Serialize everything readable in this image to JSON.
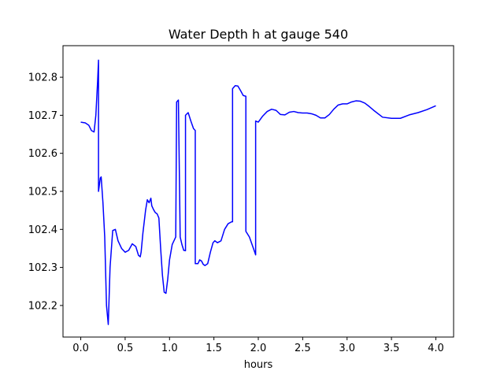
{
  "chart_data": {
    "type": "line",
    "title": "Water Depth h at gauge 540",
    "xlabel": "hours",
    "ylabel": "",
    "xlim": [
      -0.2,
      4.2
    ],
    "ylim": [
      102.117,
      102.883
    ],
    "xticks": [
      0.0,
      0.5,
      1.0,
      1.5,
      2.0,
      2.5,
      3.0,
      3.5,
      4.0
    ],
    "xtick_labels": [
      "0.0",
      "0.5",
      "1.0",
      "1.5",
      "2.0",
      "2.5",
      "3.0",
      "3.5",
      "4.0"
    ],
    "yticks": [
      102.2,
      102.3,
      102.4,
      102.5,
      102.6,
      102.7,
      102.8
    ],
    "ytick_labels": [
      "102.2",
      "102.3",
      "102.4",
      "102.5",
      "102.6",
      "102.7",
      "102.8"
    ],
    "grid": false,
    "series_color": "#0000ff",
    "series": [
      {
        "x": [
          0.0,
          0.05,
          0.09,
          0.12,
          0.15,
          0.17,
          0.19,
          0.2,
          0.2,
          0.22,
          0.23,
          0.25,
          0.27,
          0.29,
          0.31,
          0.33,
          0.36,
          0.39,
          0.42,
          0.46,
          0.5,
          0.54,
          0.58,
          0.62,
          0.65,
          0.67,
          0.68,
          0.7,
          0.73,
          0.75,
          0.77,
          0.79,
          0.8,
          0.82,
          0.84,
          0.86,
          0.88,
          0.9,
          0.92,
          0.94,
          0.96,
          0.98,
          1.0,
          1.03,
          1.07,
          1.08,
          1.1,
          1.12,
          1.14,
          1.16,
          1.18,
          1.18,
          1.21,
          1.24,
          1.27,
          1.29,
          1.29,
          1.32,
          1.34,
          1.36,
          1.38,
          1.4,
          1.43,
          1.46,
          1.49,
          1.51,
          1.54,
          1.58,
          1.62,
          1.66,
          1.7,
          1.71,
          1.71,
          1.74,
          1.77,
          1.8,
          1.83,
          1.86,
          1.86,
          1.9,
          1.93,
          1.96,
          1.97,
          1.97,
          2.0,
          2.05,
          2.1,
          2.15,
          2.2,
          2.25,
          2.3,
          2.35,
          2.4,
          2.45,
          2.5,
          2.55,
          2.6,
          2.65,
          2.7,
          2.75,
          2.8,
          2.85,
          2.9,
          2.95,
          3.0,
          3.05,
          3.1,
          3.15,
          3.2,
          3.25,
          3.3,
          3.4,
          3.5,
          3.6,
          3.7,
          3.8,
          3.9,
          4.0
        ],
        "y": [
          102.682,
          102.68,
          102.674,
          102.66,
          102.656,
          102.7,
          102.79,
          102.845,
          102.5,
          102.535,
          102.538,
          102.47,
          102.38,
          102.2,
          102.15,
          102.3,
          102.397,
          102.4,
          102.37,
          102.35,
          102.34,
          102.345,
          102.362,
          102.355,
          102.332,
          102.328,
          102.34,
          102.39,
          102.45,
          102.478,
          102.47,
          102.482,
          102.462,
          102.452,
          102.444,
          102.441,
          102.43,
          102.35,
          102.28,
          102.235,
          102.232,
          102.27,
          102.32,
          102.36,
          102.38,
          102.735,
          102.74,
          102.38,
          102.36,
          102.345,
          102.344,
          102.7,
          102.707,
          102.685,
          102.665,
          102.66,
          102.31,
          102.31,
          102.32,
          102.317,
          102.308,
          102.305,
          102.31,
          102.34,
          102.365,
          102.37,
          102.365,
          102.37,
          102.4,
          102.415,
          102.42,
          102.42,
          102.77,
          102.778,
          102.777,
          102.765,
          102.752,
          102.75,
          102.395,
          102.38,
          102.36,
          102.34,
          102.333,
          102.685,
          102.682,
          102.698,
          102.71,
          102.716,
          102.713,
          102.702,
          102.701,
          102.708,
          102.71,
          102.707,
          102.706,
          102.706,
          102.704,
          102.7,
          102.693,
          102.693,
          102.702,
          102.716,
          102.727,
          102.73,
          102.73,
          102.735,
          102.738,
          102.737,
          102.732,
          102.723,
          102.713,
          102.695,
          102.692,
          102.692,
          102.701,
          102.707,
          102.715,
          102.725
        ]
      }
    ]
  }
}
